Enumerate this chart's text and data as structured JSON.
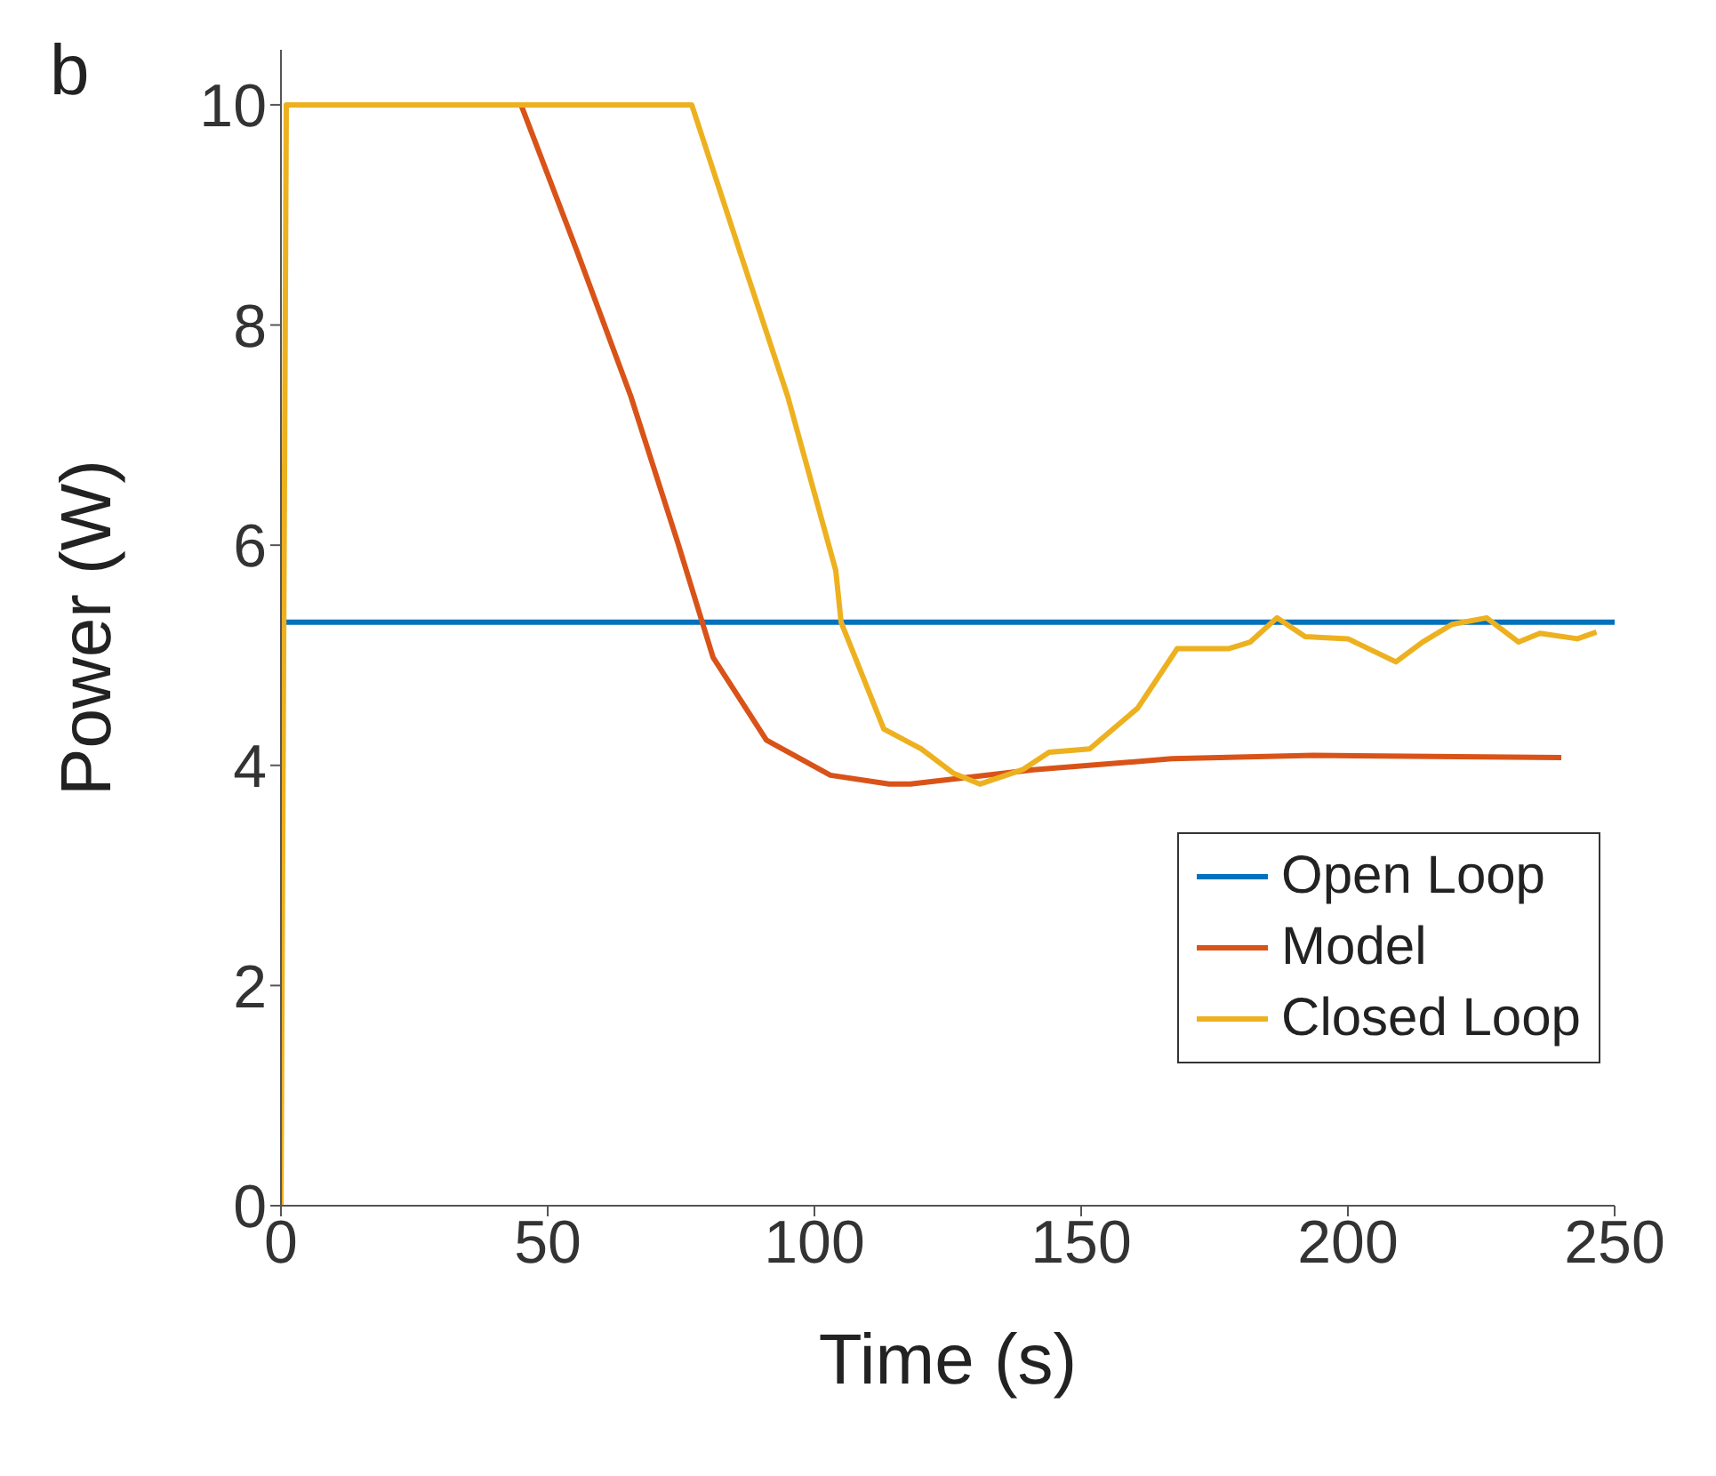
{
  "chart_data": {
    "type": "line",
    "xlabel": "Time (s)",
    "ylabel": "Power (W)",
    "annotations": [
      "b"
    ],
    "xlim": [
      0,
      250
    ],
    "ylim": [
      0,
      10.5
    ],
    "xticks": [
      0,
      50,
      100,
      150,
      200,
      250
    ],
    "yticks": [
      0,
      2,
      4,
      6,
      8,
      10
    ],
    "legend": "bottom right",
    "grid": false,
    "marker": "none",
    "line_style": "solid",
    "series": [
      {
        "name": "Open Loop",
        "color": "#0072bd",
        "x": [
          0,
          250
        ],
        "values": [
          5.3,
          5.3
        ]
      },
      {
        "name": "Model",
        "color": "#d95319",
        "x": [
          45,
          55.5,
          65.6,
          74.4,
          81,
          91,
          103,
          114,
          118,
          141,
          167,
          193.5,
          240
        ],
        "values": [
          10,
          8.67,
          7.35,
          6.02,
          4.98,
          4.23,
          3.91,
          3.83,
          3.83,
          3.96,
          4.06,
          4.09,
          4.07
        ]
      },
      {
        "name": "Closed Loop",
        "color": "#edb120",
        "x": [
          0,
          1,
          77,
          86,
          95,
          104,
          105,
          113,
          120,
          126,
          131,
          139,
          144,
          151.6,
          160.6,
          168,
          177.6,
          181.7,
          186.7,
          192,
          200,
          209,
          214,
          219.5,
          226,
          232,
          236,
          243,
          246.6
        ],
        "values": [
          0,
          10,
          10,
          8.67,
          7.35,
          5.77,
          5.3,
          4.33,
          4.15,
          3.93,
          3.83,
          3.96,
          4.12,
          4.15,
          4.52,
          5.06,
          5.06,
          5.12,
          5.34,
          5.17,
          5.15,
          4.94,
          5.12,
          5.28,
          5.34,
          5.12,
          5.2,
          5.15,
          5.21
        ]
      }
    ]
  }
}
